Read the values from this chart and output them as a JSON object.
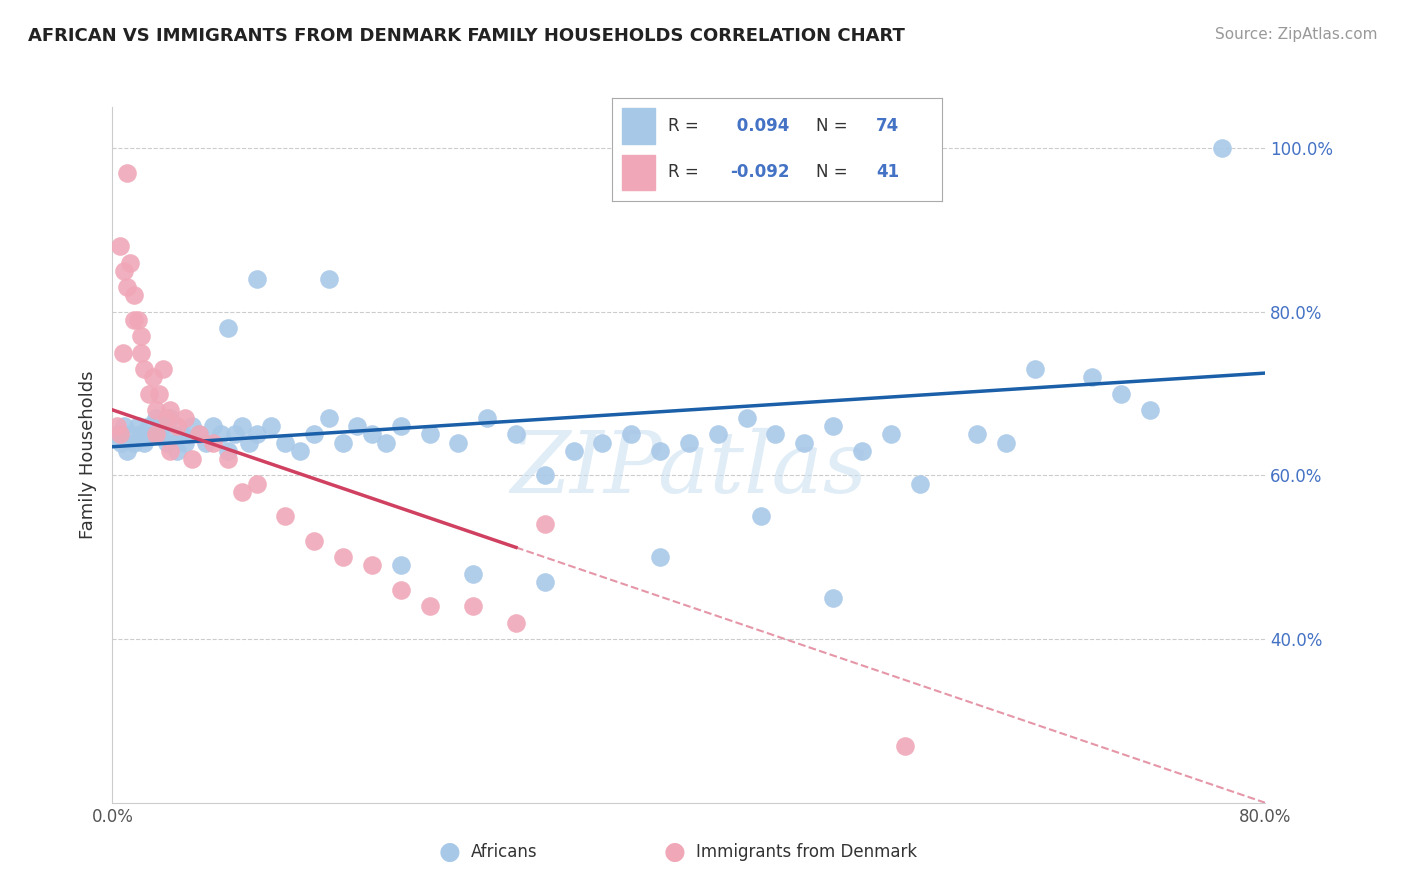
{
  "title": "AFRICAN VS IMMIGRANTS FROM DENMARK FAMILY HOUSEHOLDS CORRELATION CHART",
  "source": "Source: ZipAtlas.com",
  "ylabel": "Family Households",
  "xlim": [
    0.0,
    0.8
  ],
  "ylim": [
    0.2,
    1.05
  ],
  "ytick_positions": [
    0.4,
    0.6,
    0.8,
    1.0
  ],
  "ytick_labels": [
    "40.0%",
    "60.0%",
    "80.0%",
    "100.0%"
  ],
  "blue_color": "#a8c8e8",
  "pink_color": "#f0a8b8",
  "trend_blue": "#1a5fa8",
  "trend_pink": "#d04060",
  "watermark": "ZIPatlas",
  "blue_r": 0.094,
  "blue_n": 74,
  "pink_r": -0.092,
  "pink_n": 41,
  "blue_x": [
    0.003,
    0.006,
    0.008,
    0.01,
    0.012,
    0.015,
    0.018,
    0.02,
    0.022,
    0.025,
    0.028,
    0.03,
    0.032,
    0.035,
    0.038,
    0.04,
    0.042,
    0.045,
    0.048,
    0.05,
    0.055,
    0.06,
    0.065,
    0.07,
    0.075,
    0.08,
    0.085,
    0.09,
    0.095,
    0.1,
    0.11,
    0.12,
    0.13,
    0.14,
    0.15,
    0.16,
    0.17,
    0.18,
    0.19,
    0.2,
    0.22,
    0.24,
    0.26,
    0.28,
    0.3,
    0.32,
    0.34,
    0.36,
    0.38,
    0.4,
    0.42,
    0.44,
    0.46,
    0.48,
    0.5,
    0.52,
    0.54,
    0.56,
    0.6,
    0.62,
    0.64,
    0.68,
    0.7,
    0.72,
    0.45,
    0.5,
    0.38,
    0.3,
    0.25,
    0.2,
    0.77,
    0.15,
    0.1,
    0.08
  ],
  "blue_y": [
    0.65,
    0.64,
    0.66,
    0.63,
    0.65,
    0.64,
    0.66,
    0.65,
    0.64,
    0.66,
    0.65,
    0.67,
    0.65,
    0.66,
    0.64,
    0.67,
    0.65,
    0.63,
    0.65,
    0.64,
    0.66,
    0.65,
    0.64,
    0.66,
    0.65,
    0.63,
    0.65,
    0.66,
    0.64,
    0.65,
    0.66,
    0.64,
    0.63,
    0.65,
    0.67,
    0.64,
    0.66,
    0.65,
    0.64,
    0.66,
    0.65,
    0.64,
    0.67,
    0.65,
    0.6,
    0.63,
    0.64,
    0.65,
    0.63,
    0.64,
    0.65,
    0.67,
    0.65,
    0.64,
    0.66,
    0.63,
    0.65,
    0.59,
    0.65,
    0.64,
    0.73,
    0.72,
    0.7,
    0.68,
    0.55,
    0.45,
    0.5,
    0.47,
    0.48,
    0.49,
    1.0,
    0.84,
    0.84,
    0.78
  ],
  "pink_x": [
    0.003,
    0.005,
    0.007,
    0.01,
    0.012,
    0.015,
    0.018,
    0.02,
    0.022,
    0.025,
    0.028,
    0.03,
    0.032,
    0.035,
    0.038,
    0.04,
    0.045,
    0.05,
    0.055,
    0.06,
    0.07,
    0.08,
    0.09,
    0.1,
    0.12,
    0.14,
    0.16,
    0.18,
    0.2,
    0.22,
    0.25,
    0.28,
    0.3,
    0.005,
    0.008,
    0.01,
    0.015,
    0.02,
    0.03,
    0.04,
    0.55
  ],
  "pink_y": [
    0.66,
    0.65,
    0.75,
    0.97,
    0.86,
    0.82,
    0.79,
    0.75,
    0.73,
    0.7,
    0.72,
    0.68,
    0.7,
    0.73,
    0.67,
    0.68,
    0.66,
    0.67,
    0.62,
    0.65,
    0.64,
    0.62,
    0.58,
    0.59,
    0.55,
    0.52,
    0.5,
    0.49,
    0.46,
    0.44,
    0.44,
    0.42,
    0.54,
    0.88,
    0.85,
    0.83,
    0.79,
    0.77,
    0.65,
    0.63,
    0.27
  ]
}
